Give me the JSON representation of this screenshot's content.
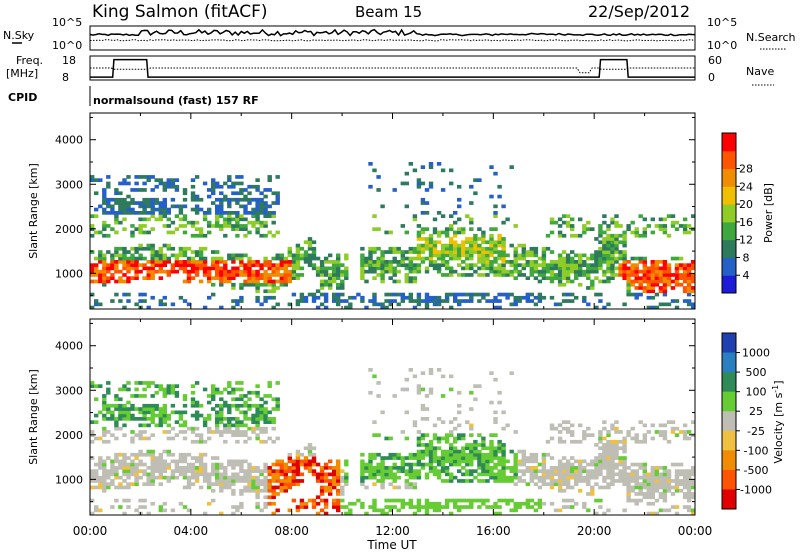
{
  "header": {
    "station": "King Salmon (fitACF)",
    "beam": "Beam 15",
    "date": "22/Sep/2012"
  },
  "strip": {
    "nsky_label": "N.Sky",
    "nsky_ticks": [
      "10^5",
      "10^0"
    ],
    "nsearch_label": "N.Search",
    "nsearch_ticks": [
      "10^5",
      "10^0"
    ],
    "freq_label_1": "Freq.",
    "freq_label_2": "[MHz]",
    "freq_ticks": [
      "18",
      "8"
    ],
    "nave_label": "Nave",
    "nave_ticks": [
      "60",
      "0"
    ],
    "cpid_label": "CPID",
    "cpid_value": "normalsound (fast) 157 RF"
  },
  "chart_data": [
    {
      "type": "heatmap",
      "name": "power",
      "ylabel": "Slant Range [km]",
      "yticks": [
        "1000",
        "2000",
        "3000",
        "4000"
      ],
      "ylim": [
        200,
        4600
      ],
      "xlim": [
        0,
        24
      ],
      "colorbar_label": "Power [dB]",
      "colorbar_ticks": [
        "4",
        "8",
        "12",
        "16",
        "20",
        "24",
        "28"
      ],
      "colors": [
        "#1c1cd8",
        "#2460c8",
        "#2e7a5c",
        "#3ea83e",
        "#90cc28",
        "#f0c000",
        "#f08c00",
        "#ff5500",
        "#ff0000"
      ]
    },
    {
      "type": "heatmap",
      "name": "velocity",
      "ylabel": "Slant Range [km]",
      "yticks": [
        "1000",
        "2000",
        "3000",
        "4000"
      ],
      "ylim": [
        200,
        4600
      ],
      "xlim": [
        0,
        24
      ],
      "xlabel": "Time UT",
      "xticks": [
        "00:00",
        "04:00",
        "08:00",
        "12:00",
        "16:00",
        "20:00",
        "00:00"
      ],
      "colorbar_label": "Velocity [m s",
      "colorbar_label_sup": "-1",
      "colorbar_label_end": "]",
      "colorbar_ticks": [
        "1000",
        "500",
        "100",
        "25",
        "-25",
        "-100",
        "-500",
        "-1000"
      ],
      "colors": [
        "#2040b0",
        "#2a7fc0",
        "#2e8b57",
        "#66cc33",
        "#bebeb4",
        "#f0c040",
        "#f08c00",
        "#ff5500",
        "#e00000"
      ]
    }
  ]
}
